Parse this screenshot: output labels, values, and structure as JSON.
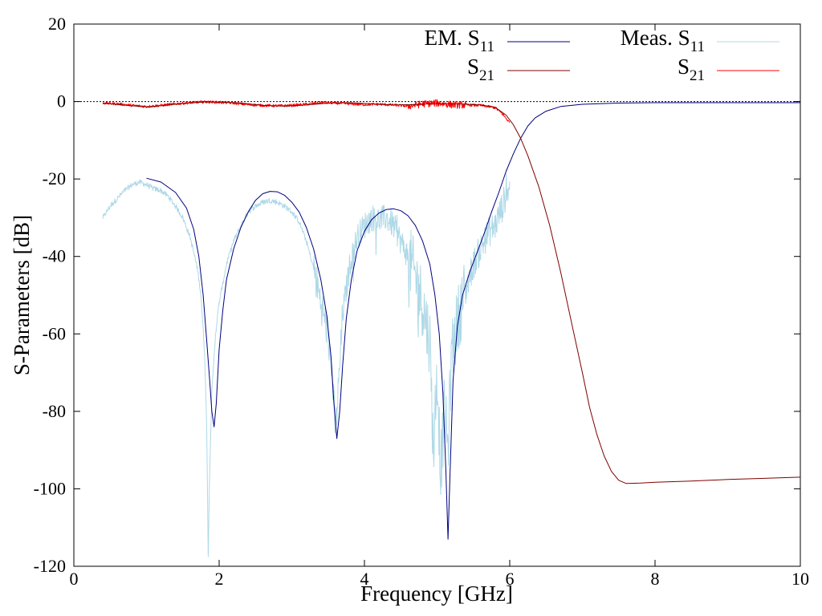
{
  "chart_data": {
    "type": "line",
    "title": "",
    "xlabel": "Frequency [GHz]",
    "ylabel": "S-Parameters [dB]",
    "xlim": [
      0,
      10
    ],
    "ylim": [
      -120,
      20
    ],
    "xticks": [
      0,
      2,
      4,
      6,
      8,
      10
    ],
    "yticks": [
      20,
      0,
      -20,
      -40,
      -60,
      -80,
      -100,
      -120
    ],
    "grid": false,
    "reference_line_y": 0,
    "legend": {
      "placement": "top-right",
      "columns": [
        {
          "prefix": "EM.",
          "entries": [
            "S11",
            "S21"
          ]
        },
        {
          "prefix": "Meas.",
          "entries": [
            "S11",
            "S21"
          ]
        }
      ]
    },
    "series": [
      {
        "label": "EM. S11",
        "color": "#00007f",
        "points": [
          [
            1.0,
            -19.8
          ],
          [
            1.2,
            -20.8
          ],
          [
            1.4,
            -23.5
          ],
          [
            1.55,
            -27.5
          ],
          [
            1.65,
            -33.0
          ],
          [
            1.72,
            -40.0
          ],
          [
            1.78,
            -50.0
          ],
          [
            1.83,
            -62.0
          ],
          [
            1.87,
            -72.0
          ],
          [
            1.9,
            -80.0
          ],
          [
            1.93,
            -84.0
          ],
          [
            1.96,
            -78.0
          ],
          [
            2.0,
            -64.0
          ],
          [
            2.05,
            -54.0
          ],
          [
            2.1,
            -46.0
          ],
          [
            2.2,
            -38.0
          ],
          [
            2.3,
            -32.5
          ],
          [
            2.4,
            -28.5
          ],
          [
            2.5,
            -25.5
          ],
          [
            2.6,
            -23.8
          ],
          [
            2.7,
            -23.2
          ],
          [
            2.8,
            -23.3
          ],
          [
            2.9,
            -24.2
          ],
          [
            3.0,
            -26.0
          ],
          [
            3.1,
            -28.5
          ],
          [
            3.2,
            -32.5
          ],
          [
            3.3,
            -38.0
          ],
          [
            3.4,
            -46.0
          ],
          [
            3.48,
            -55.0
          ],
          [
            3.54,
            -66.0
          ],
          [
            3.58,
            -78.0
          ],
          [
            3.62,
            -87.0
          ],
          [
            3.66,
            -80.0
          ],
          [
            3.7,
            -68.0
          ],
          [
            3.75,
            -56.0
          ],
          [
            3.82,
            -46.0
          ],
          [
            3.9,
            -38.5
          ],
          [
            4.0,
            -33.5
          ],
          [
            4.1,
            -30.5
          ],
          [
            4.2,
            -28.8
          ],
          [
            4.3,
            -27.9
          ],
          [
            4.4,
            -27.7
          ],
          [
            4.5,
            -28.2
          ],
          [
            4.6,
            -29.5
          ],
          [
            4.7,
            -32.0
          ],
          [
            4.8,
            -36.0
          ],
          [
            4.9,
            -42.0
          ],
          [
            4.97,
            -50.0
          ],
          [
            5.03,
            -60.0
          ],
          [
            5.08,
            -75.0
          ],
          [
            5.12,
            -95.0
          ],
          [
            5.15,
            -113.0
          ],
          [
            5.18,
            -95.0
          ],
          [
            5.22,
            -72.0
          ],
          [
            5.28,
            -58.0
          ],
          [
            5.35,
            -50.0
          ],
          [
            5.45,
            -44.0
          ],
          [
            5.55,
            -39.0
          ],
          [
            5.65,
            -34.0
          ],
          [
            5.75,
            -28.5
          ],
          [
            5.85,
            -23.5
          ],
          [
            5.95,
            -18.0
          ],
          [
            6.05,
            -13.5
          ],
          [
            6.15,
            -9.5
          ],
          [
            6.25,
            -6.3
          ],
          [
            6.35,
            -4.2
          ],
          [
            6.5,
            -2.5
          ],
          [
            6.7,
            -1.3
          ],
          [
            7.0,
            -0.7
          ],
          [
            7.5,
            -0.4
          ],
          [
            8.0,
            -0.3
          ],
          [
            9.0,
            -0.3
          ],
          [
            10.0,
            -0.3
          ]
        ]
      },
      {
        "label": "EM. S21",
        "color": "#7f0000",
        "points": [
          [
            0.4,
            -0.4
          ],
          [
            0.8,
            -1.1
          ],
          [
            1.0,
            -1.4
          ],
          [
            1.2,
            -1.1
          ],
          [
            1.5,
            -0.5
          ],
          [
            1.8,
            -0.1
          ],
          [
            2.0,
            -0.1
          ],
          [
            2.3,
            -0.4
          ],
          [
            2.6,
            -1.0
          ],
          [
            2.9,
            -1.2
          ],
          [
            3.2,
            -0.9
          ],
          [
            3.5,
            -0.4
          ],
          [
            3.8,
            -0.3
          ],
          [
            4.1,
            -0.6
          ],
          [
            4.4,
            -0.9
          ],
          [
            4.7,
            -0.8
          ],
          [
            5.0,
            -0.5
          ],
          [
            5.3,
            -0.6
          ],
          [
            5.6,
            -0.9
          ],
          [
            5.8,
            -1.5
          ],
          [
            5.95,
            -3.5
          ],
          [
            6.05,
            -6.0
          ],
          [
            6.15,
            -9.5
          ],
          [
            6.25,
            -14.0
          ],
          [
            6.4,
            -22.0
          ],
          [
            6.55,
            -32.0
          ],
          [
            6.7,
            -44.0
          ],
          [
            6.85,
            -57.0
          ],
          [
            7.0,
            -70.0
          ],
          [
            7.1,
            -79.0
          ],
          [
            7.2,
            -86.0
          ],
          [
            7.3,
            -91.5
          ],
          [
            7.4,
            -95.5
          ],
          [
            7.5,
            -97.8
          ],
          [
            7.6,
            -98.6
          ],
          [
            7.8,
            -98.5
          ],
          [
            8.0,
            -98.3
          ],
          [
            8.5,
            -98.0
          ],
          [
            9.0,
            -97.6
          ],
          [
            9.5,
            -97.3
          ],
          [
            10.0,
            -97.0
          ]
        ]
      },
      {
        "label": "Meas. S11",
        "color": "#add8e6",
        "noisy": true,
        "points": [
          [
            0.4,
            -30.0
          ],
          [
            0.5,
            -27.0
          ],
          [
            0.6,
            -25.0
          ],
          [
            0.7,
            -23.0
          ],
          [
            0.8,
            -21.5
          ],
          [
            0.9,
            -20.8
          ],
          [
            1.0,
            -21.5
          ],
          [
            1.1,
            -22.5
          ],
          [
            1.2,
            -23.0
          ],
          [
            1.3,
            -24.5
          ],
          [
            1.4,
            -27.0
          ],
          [
            1.5,
            -30.0
          ],
          [
            1.6,
            -35.0
          ],
          [
            1.7,
            -43.0
          ],
          [
            1.75,
            -50.0
          ],
          [
            1.8,
            -65.0
          ],
          [
            1.83,
            -85.0
          ],
          [
            1.85,
            -117.0
          ],
          [
            1.87,
            -95.0
          ],
          [
            1.9,
            -75.0
          ],
          [
            1.95,
            -60.0
          ],
          [
            2.0,
            -52.0
          ],
          [
            2.1,
            -42.0
          ],
          [
            2.2,
            -36.0
          ],
          [
            2.3,
            -32.0
          ],
          [
            2.4,
            -28.5
          ],
          [
            2.5,
            -27.0
          ],
          [
            2.6,
            -26.0
          ],
          [
            2.7,
            -25.5
          ],
          [
            2.8,
            -26.0
          ],
          [
            2.9,
            -27.0
          ],
          [
            3.0,
            -28.5
          ],
          [
            3.1,
            -31.0
          ],
          [
            3.2,
            -36.0
          ],
          [
            3.3,
            -43.0
          ],
          [
            3.4,
            -52.0
          ],
          [
            3.5,
            -60.0
          ],
          [
            3.55,
            -70.0
          ],
          [
            3.6,
            -85.0
          ],
          [
            3.65,
            -72.0
          ],
          [
            3.7,
            -55.0
          ],
          [
            3.8,
            -42.0
          ],
          [
            3.9,
            -35.0
          ],
          [
            4.0,
            -32.0
          ],
          [
            4.1,
            -30.0
          ],
          [
            4.2,
            -30.5
          ],
          [
            4.3,
            -30.0
          ],
          [
            4.4,
            -32.0
          ],
          [
            4.5,
            -36.0
          ],
          [
            4.6,
            -40.0
          ],
          [
            4.7,
            -45.0
          ],
          [
            4.8,
            -52.0
          ],
          [
            4.9,
            -62.0
          ],
          [
            4.95,
            -90.0
          ],
          [
            5.0,
            -70.0
          ],
          [
            5.05,
            -95.0
          ],
          [
            5.1,
            -80.0
          ],
          [
            5.15,
            -90.0
          ],
          [
            5.2,
            -65.0
          ],
          [
            5.3,
            -55.0
          ],
          [
            5.4,
            -48.0
          ],
          [
            5.5,
            -42.0
          ],
          [
            5.6,
            -38.0
          ],
          [
            5.7,
            -34.0
          ],
          [
            5.8,
            -32.0
          ],
          [
            5.9,
            -27.0
          ],
          [
            6.0,
            -21.0
          ]
        ]
      },
      {
        "label": "Meas. S21",
        "color": "#ff0000",
        "noisy": true,
        "points": [
          [
            0.4,
            -0.4
          ],
          [
            0.6,
            -0.6
          ],
          [
            0.8,
            -1.0
          ],
          [
            1.0,
            -1.3
          ],
          [
            1.2,
            -1.0
          ],
          [
            1.4,
            -0.6
          ],
          [
            1.6,
            -0.3
          ],
          [
            1.8,
            -0.1
          ],
          [
            2.0,
            -0.2
          ],
          [
            2.2,
            -0.4
          ],
          [
            2.4,
            -0.8
          ],
          [
            2.6,
            -1.0
          ],
          [
            2.8,
            -1.1
          ],
          [
            3.0,
            -1.0
          ],
          [
            3.2,
            -0.7
          ],
          [
            3.4,
            -0.3
          ],
          [
            3.6,
            -0.4
          ],
          [
            3.8,
            -0.6
          ],
          [
            4.0,
            -0.8
          ],
          [
            4.2,
            -0.7
          ],
          [
            4.4,
            -0.9
          ],
          [
            4.6,
            -1.2
          ],
          [
            4.8,
            -0.6
          ],
          [
            5.0,
            -0.4
          ],
          [
            5.2,
            -0.8
          ],
          [
            5.4,
            -0.9
          ],
          [
            5.6,
            -1.0
          ],
          [
            5.8,
            -1.6
          ],
          [
            5.9,
            -3.2
          ],
          [
            6.0,
            -5.5
          ]
        ]
      }
    ]
  }
}
